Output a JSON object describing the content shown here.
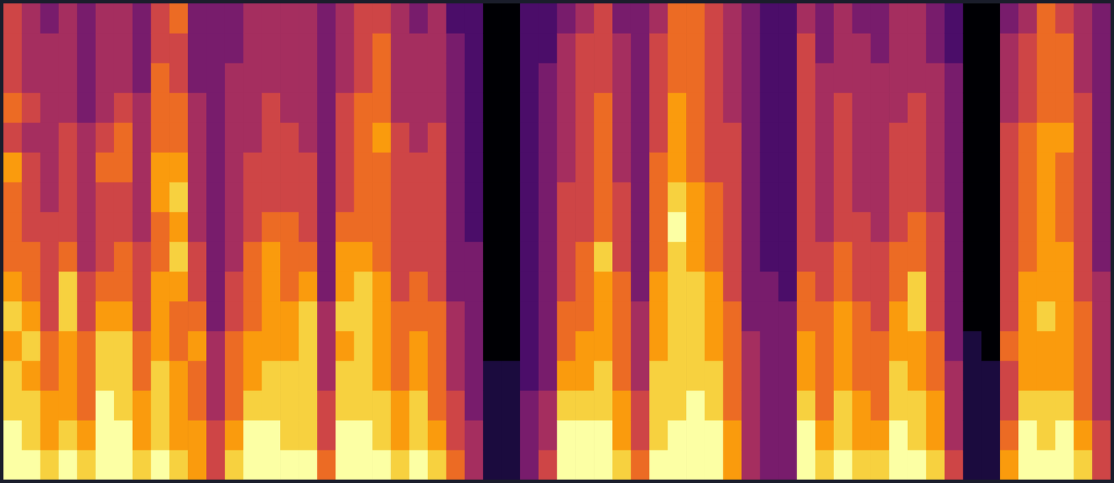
{
  "chart_data": {
    "type": "heatmap",
    "tick_labels": false,
    "zlim": [
      0,
      9
    ],
    "cells": [
      [
        9,
        9,
        8,
        8,
        7,
        8,
        7,
        6,
        6,
        6,
        7,
        5,
        6,
        5,
        5,
        5
      ],
      [
        9,
        8,
        8,
        7,
        8,
        7,
        6,
        6,
        5,
        5,
        5,
        4,
        5,
        4,
        4,
        4
      ],
      [
        8,
        7,
        7,
        6,
        6,
        5,
        5,
        5,
        5,
        4,
        4,
        4,
        4,
        4,
        4,
        3
      ],
      [
        9,
        8,
        7,
        7,
        7,
        8,
        8,
        6,
        5,
        5,
        5,
        5,
        4,
        4,
        4,
        4
      ],
      [
        8,
        7,
        6,
        6,
        6,
        5,
        5,
        4,
        4,
        4,
        4,
        4,
        3,
        3,
        3,
        3
      ],
      [
        9,
        9,
        9,
        8,
        8,
        7,
        6,
        5,
        5,
        5,
        6,
        5,
        4,
        4,
        4,
        4
      ],
      [
        9,
        9,
        8,
        8,
        8,
        7,
        6,
        6,
        5,
        5,
        6,
        6,
        5,
        4,
        4,
        4
      ],
      [
        8,
        7,
        7,
        6,
        6,
        5,
        5,
        5,
        4,
        4,
        4,
        4,
        4,
        3,
        3,
        3
      ],
      [
        9,
        8,
        8,
        8,
        7,
        7,
        7,
        6,
        6,
        7,
        7,
        6,
        6,
        6,
        5,
        5
      ],
      [
        8,
        7,
        7,
        7,
        6,
        6,
        7,
        8,
        7,
        8,
        7,
        6,
        6,
        5,
        5,
        6
      ],
      [
        7,
        7,
        6,
        6,
        7,
        6,
        5,
        5,
        4,
        4,
        4,
        4,
        4,
        3,
        3,
        3
      ],
      [
        5,
        5,
        4,
        4,
        4,
        3,
        3,
        3,
        3,
        3,
        3,
        3,
        3,
        3,
        3,
        3
      ],
      [
        8,
        7,
        6,
        6,
        6,
        5,
        5,
        4,
        4,
        4,
        4,
        4,
        4,
        4,
        3,
        3
      ],
      [
        9,
        9,
        8,
        7,
        7,
        6,
        6,
        6,
        5,
        5,
        5,
        4,
        4,
        4,
        4,
        4
      ],
      [
        9,
        9,
        8,
        8,
        7,
        7,
        7,
        7,
        6,
        5,
        5,
        5,
        5,
        4,
        4,
        4
      ],
      [
        9,
        8,
        8,
        8,
        7,
        7,
        6,
        6,
        6,
        5,
        5,
        5,
        4,
        4,
        4,
        4
      ],
      [
        9,
        8,
        8,
        8,
        8,
        8,
        7,
        6,
        5,
        5,
        5,
        4,
        4,
        4,
        4,
        4
      ],
      [
        6,
        5,
        5,
        4,
        4,
        4,
        3,
        3,
        3,
        3,
        3,
        3,
        3,
        3,
        3,
        3
      ],
      [
        9,
        9,
        8,
        8,
        7,
        8,
        7,
        7,
        6,
        5,
        5,
        5,
        5,
        4,
        4,
        4
      ],
      [
        9,
        9,
        8,
        8,
        8,
        8,
        8,
        7,
        6,
        6,
        6,
        6,
        6,
        5,
        5,
        5
      ],
      [
        9,
        8,
        8,
        7,
        7,
        7,
        7,
        6,
        6,
        6,
        6,
        7,
        6,
        6,
        6,
        5
      ],
      [
        8,
        7,
        7,
        6,
        6,
        6,
        5,
        5,
        5,
        5,
        5,
        5,
        4,
        4,
        4,
        4
      ],
      [
        9,
        8,
        8,
        7,
        7,
        6,
        6,
        5,
        5,
        5,
        5,
        4,
        4,
        4,
        4,
        3
      ],
      [
        8,
        7,
        6,
        6,
        6,
        6,
        5,
        5,
        5,
        5,
        5,
        5,
        4,
        4,
        4,
        4
      ],
      [
        6,
        5,
        5,
        4,
        4,
        4,
        3,
        3,
        3,
        3,
        3,
        3,
        3,
        3,
        3,
        2
      ],
      [
        4,
        4,
        3,
        3,
        3,
        3,
        3,
        3,
        2,
        2,
        2,
        2,
        2,
        2,
        2,
        2
      ],
      [
        1,
        1,
        1,
        1,
        0,
        0,
        0,
        0,
        0,
        0,
        0,
        0,
        0,
        0,
        0,
        0
      ],
      [
        1,
        1,
        1,
        1,
        0,
        0,
        0,
        0,
        0,
        0,
        0,
        0,
        0,
        0,
        0,
        0
      ],
      [
        3,
        3,
        3,
        2,
        2,
        2,
        2,
        2,
        2,
        2,
        2,
        2,
        2,
        2,
        2,
        2
      ],
      [
        5,
        4,
        4,
        3,
        3,
        3,
        3,
        3,
        3,
        3,
        3,
        3,
        3,
        3,
        2,
        2
      ],
      [
        9,
        9,
        8,
        7,
        6,
        6,
        5,
        5,
        5,
        5,
        4,
        4,
        4,
        4,
        4,
        3
      ],
      [
        9,
        9,
        8,
        7,
        7,
        6,
        6,
        6,
        5,
        5,
        5,
        5,
        5,
        5,
        5,
        4
      ],
      [
        9,
        9,
        8,
        8,
        7,
        7,
        7,
        8,
        6,
        6,
        6,
        6,
        6,
        5,
        5,
        5
      ],
      [
        8,
        7,
        7,
        6,
        6,
        6,
        6,
        5,
        5,
        5,
        4,
        4,
        4,
        4,
        4,
        3
      ],
      [
        6,
        5,
        5,
        4,
        4,
        4,
        3,
        3,
        3,
        3,
        3,
        3,
        3,
        3,
        3,
        3
      ],
      [
        9,
        8,
        8,
        8,
        7,
        7,
        7,
        6,
        6,
        6,
        6,
        5,
        5,
        5,
        5,
        4
      ],
      [
        9,
        9,
        8,
        8,
        8,
        8,
        8,
        8,
        9,
        8,
        7,
        7,
        7,
        6,
        6,
        6
      ],
      [
        9,
        9,
        9,
        8,
        8,
        8,
        8,
        7,
        7,
        7,
        6,
        6,
        6,
        6,
        6,
        6
      ],
      [
        9,
        9,
        8,
        8,
        7,
        7,
        7,
        6,
        6,
        6,
        5,
        5,
        5,
        5,
        5,
        5
      ],
      [
        7,
        7,
        6,
        6,
        6,
        6,
        5,
        5,
        5,
        5,
        5,
        5,
        4,
        4,
        4,
        4
      ],
      [
        4,
        4,
        4,
        4,
        4,
        3,
        3,
        3,
        3,
        3,
        3,
        3,
        3,
        3,
        3,
        3
      ],
      [
        3,
        3,
        3,
        3,
        3,
        3,
        3,
        2,
        2,
        2,
        2,
        2,
        2,
        2,
        2,
        2
      ],
      [
        3,
        3,
        3,
        3,
        3,
        3,
        2,
        2,
        2,
        2,
        2,
        2,
        2,
        2,
        2,
        2
      ],
      [
        9,
        9,
        8,
        7,
        7,
        6,
        6,
        5,
        5,
        5,
        5,
        5,
        5,
        5,
        5,
        4
      ],
      [
        8,
        7,
        6,
        6,
        6,
        6,
        5,
        5,
        4,
        4,
        4,
        4,
        4,
        4,
        3,
        3
      ],
      [
        9,
        8,
        8,
        7,
        7,
        7,
        6,
        6,
        5,
        5,
        5,
        5,
        5,
        4,
        4,
        4
      ],
      [
        8,
        7,
        7,
        6,
        6,
        6,
        5,
        5,
        5,
        4,
        4,
        4,
        4,
        4,
        4,
        3
      ],
      [
        8,
        7,
        6,
        6,
        6,
        5,
        5,
        5,
        4,
        4,
        4,
        4,
        4,
        4,
        3,
        3
      ],
      [
        9,
        9,
        8,
        8,
        7,
        7,
        6,
        6,
        5,
        5,
        5,
        5,
        4,
        4,
        4,
        4
      ],
      [
        9,
        8,
        8,
        7,
        7,
        8,
        8,
        6,
        6,
        5,
        5,
        5,
        5,
        4,
        4,
        4
      ],
      [
        8,
        7,
        7,
        6,
        6,
        5,
        5,
        5,
        5,
        4,
        4,
        4,
        4,
        4,
        3,
        3
      ],
      [
        5,
        4,
        4,
        4,
        3,
        3,
        3,
        3,
        3,
        3,
        3,
        3,
        3,
        3,
        2,
        2
      ],
      [
        1,
        1,
        1,
        1,
        1,
        0,
        0,
        0,
        0,
        0,
        0,
        0,
        0,
        0,
        0,
        0
      ],
      [
        1,
        1,
        1,
        1,
        0,
        0,
        0,
        0,
        0,
        0,
        0,
        0,
        0,
        0,
        0,
        0
      ],
      [
        7,
        6,
        5,
        5,
        6,
        5,
        5,
        5,
        5,
        5,
        5,
        5,
        4,
        4,
        4,
        3
      ],
      [
        9,
        9,
        8,
        7,
        7,
        7,
        7,
        6,
        6,
        6,
        6,
        6,
        5,
        5,
        5,
        4
      ],
      [
        9,
        8,
        8,
        7,
        7,
        8,
        7,
        7,
        7,
        7,
        7,
        7,
        6,
        6,
        6,
        6
      ],
      [
        9,
        9,
        8,
        7,
        7,
        7,
        7,
        7,
        6,
        6,
        6,
        7,
        6,
        6,
        6,
        5
      ],
      [
        8,
        7,
        6,
        6,
        6,
        6,
        5,
        5,
        5,
        5,
        5,
        5,
        5,
        4,
        4,
        4
      ],
      [
        5,
        5,
        4,
        4,
        4,
        4,
        4,
        3,
        3,
        3,
        3,
        3,
        3,
        3,
        3,
        3
      ]
    ]
  }
}
